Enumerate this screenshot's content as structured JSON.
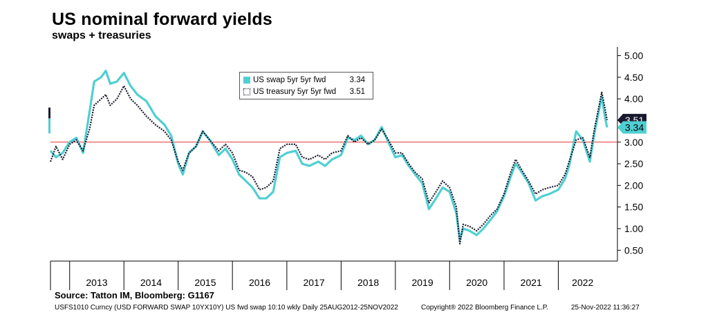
{
  "header": {
    "title": "US nominal forward yields",
    "subtitle": "swaps + treasuries"
  },
  "legend": {
    "items": [
      {
        "label": "US swap 5yr 5yr fwd",
        "value": "3.34",
        "color": "#4fcfd2",
        "style": "solid"
      },
      {
        "label": "US treasury 5yr 5yr fwd",
        "value": "3.51",
        "color": "#1a1a2e",
        "style": "dotted"
      }
    ]
  },
  "footer": {
    "source": "Source: Tatton IM, Bloomberg: G1167",
    "ticker": "USFS1010 Curncy (USD FORWARD SWAP 10YX10Y) US fwd swap 10:10 wkly  Daily 25AUG2012-25NOV2022",
    "copyright": "Copyright® 2022 Bloomberg Finance L.P.",
    "timestamp": "25-Nov-2022 11:36:27"
  },
  "chart_data": {
    "type": "line",
    "title": "US nominal forward yields",
    "subtitle": "swaps + treasuries",
    "xlabel": "",
    "ylabel": "",
    "x_range": [
      "2012-08-25",
      "2022-11-25"
    ],
    "x_tick_labels": [
      "2013",
      "2014",
      "2015",
      "2016",
      "2017",
      "2018",
      "2019",
      "2020",
      "2021",
      "2022"
    ],
    "ylim": [
      0.25,
      5.2
    ],
    "y_ticks": [
      "5.00",
      "4.50",
      "4.00",
      "3.50",
      "3.00",
      "2.50",
      "2.00",
      "1.50",
      "1.00",
      "0.50"
    ],
    "y_axis_side": "right",
    "reference_line": {
      "y": 3.0,
      "color": "#e03030"
    },
    "last_value_tags": [
      {
        "value": "3.51",
        "color": "#1a1a2e"
      },
      {
        "value": "3.34",
        "color": "#4fcfd2"
      }
    ],
    "legend_position": "top-center",
    "grid": false,
    "series": [
      {
        "name": "US swap 5yr 5yr fwd",
        "color": "#4fcfd2",
        "style": "solid",
        "points": [
          [
            "2012-08-25",
            2.8
          ],
          [
            "2012-10-01",
            2.65
          ],
          [
            "2012-11-15",
            2.75
          ],
          [
            "2013-01-01",
            3.0
          ],
          [
            "2013-02-15",
            3.1
          ],
          [
            "2013-04-01",
            2.75
          ],
          [
            "2013-05-15",
            3.7
          ],
          [
            "2013-06-15",
            4.4
          ],
          [
            "2013-08-01",
            4.5
          ],
          [
            "2013-09-01",
            4.65
          ],
          [
            "2013-10-01",
            4.35
          ],
          [
            "2013-11-15",
            4.4
          ],
          [
            "2014-01-01",
            4.6
          ],
          [
            "2014-02-15",
            4.3
          ],
          [
            "2014-04-01",
            4.1
          ],
          [
            "2014-06-01",
            3.95
          ],
          [
            "2014-08-01",
            3.6
          ],
          [
            "2014-10-01",
            3.4
          ],
          [
            "2014-11-15",
            3.15
          ],
          [
            "2015-01-01",
            2.5
          ],
          [
            "2015-02-01",
            2.25
          ],
          [
            "2015-03-15",
            2.75
          ],
          [
            "2015-05-01",
            2.9
          ],
          [
            "2015-06-15",
            3.25
          ],
          [
            "2015-08-01",
            3.05
          ],
          [
            "2015-10-01",
            2.7
          ],
          [
            "2015-11-15",
            2.85
          ],
          [
            "2016-01-01",
            2.6
          ],
          [
            "2016-02-15",
            2.25
          ],
          [
            "2016-04-01",
            2.1
          ],
          [
            "2016-05-15",
            1.95
          ],
          [
            "2016-07-01",
            1.7
          ],
          [
            "2016-08-15",
            1.7
          ],
          [
            "2016-10-01",
            1.85
          ],
          [
            "2016-11-15",
            2.65
          ],
          [
            "2017-01-01",
            2.75
          ],
          [
            "2017-03-01",
            2.8
          ],
          [
            "2017-04-15",
            2.5
          ],
          [
            "2017-06-01",
            2.45
          ],
          [
            "2017-08-01",
            2.55
          ],
          [
            "2017-09-15",
            2.45
          ],
          [
            "2017-11-01",
            2.6
          ],
          [
            "2018-01-01",
            2.7
          ],
          [
            "2018-02-15",
            3.1
          ],
          [
            "2018-04-01",
            3.05
          ],
          [
            "2018-05-15",
            3.15
          ],
          [
            "2018-07-01",
            2.95
          ],
          [
            "2018-08-15",
            3.05
          ],
          [
            "2018-10-01",
            3.35
          ],
          [
            "2018-11-15",
            3.0
          ],
          [
            "2019-01-01",
            2.65
          ],
          [
            "2019-02-15",
            2.7
          ],
          [
            "2019-04-01",
            2.45
          ],
          [
            "2019-05-15",
            2.25
          ],
          [
            "2019-07-01",
            2.05
          ],
          [
            "2019-08-15",
            1.45
          ],
          [
            "2019-10-01",
            1.7
          ],
          [
            "2019-11-15",
            1.95
          ],
          [
            "2020-01-01",
            1.85
          ],
          [
            "2020-02-15",
            1.35
          ],
          [
            "2020-03-10",
            0.75
          ],
          [
            "2020-04-01",
            1.0
          ],
          [
            "2020-05-15",
            0.95
          ],
          [
            "2020-07-01",
            0.85
          ],
          [
            "2020-08-15",
            1.0
          ],
          [
            "2020-10-01",
            1.2
          ],
          [
            "2020-11-15",
            1.4
          ],
          [
            "2021-01-01",
            1.75
          ],
          [
            "2021-02-15",
            2.2
          ],
          [
            "2021-03-20",
            2.5
          ],
          [
            "2021-05-01",
            2.3
          ],
          [
            "2021-06-15",
            2.05
          ],
          [
            "2021-08-01",
            1.65
          ],
          [
            "2021-09-15",
            1.75
          ],
          [
            "2021-11-01",
            1.8
          ],
          [
            "2022-01-01",
            1.9
          ],
          [
            "2022-02-15",
            2.15
          ],
          [
            "2022-03-15",
            2.45
          ],
          [
            "2022-05-01",
            3.25
          ],
          [
            "2022-06-15",
            3.05
          ],
          [
            "2022-08-01",
            2.55
          ],
          [
            "2022-09-01",
            3.2
          ],
          [
            "2022-10-20",
            4.05
          ],
          [
            "2022-11-10",
            3.6
          ],
          [
            "2022-11-25",
            3.34
          ]
        ]
      },
      {
        "name": "US treasury 5yr 5yr fwd",
        "color": "#1a1a2e",
        "style": "dotted",
        "points": [
          [
            "2012-08-25",
            2.55
          ],
          [
            "2012-10-01",
            2.9
          ],
          [
            "2012-11-15",
            2.6
          ],
          [
            "2013-01-01",
            2.95
          ],
          [
            "2013-02-15",
            3.05
          ],
          [
            "2013-04-01",
            2.8
          ],
          [
            "2013-05-15",
            3.3
          ],
          [
            "2013-06-15",
            3.85
          ],
          [
            "2013-08-01",
            4.0
          ],
          [
            "2013-09-01",
            4.1
          ],
          [
            "2013-10-01",
            3.85
          ],
          [
            "2013-11-15",
            4.0
          ],
          [
            "2014-01-01",
            4.3
          ],
          [
            "2014-02-15",
            4.0
          ],
          [
            "2014-04-01",
            3.85
          ],
          [
            "2014-06-01",
            3.6
          ],
          [
            "2014-08-01",
            3.4
          ],
          [
            "2014-10-01",
            3.25
          ],
          [
            "2014-11-15",
            3.05
          ],
          [
            "2015-01-01",
            2.55
          ],
          [
            "2015-02-01",
            2.35
          ],
          [
            "2015-03-15",
            2.75
          ],
          [
            "2015-05-01",
            2.9
          ],
          [
            "2015-06-15",
            3.25
          ],
          [
            "2015-08-01",
            3.05
          ],
          [
            "2015-10-01",
            2.8
          ],
          [
            "2015-11-15",
            2.95
          ],
          [
            "2016-01-01",
            2.75
          ],
          [
            "2016-02-15",
            2.35
          ],
          [
            "2016-04-01",
            2.3
          ],
          [
            "2016-05-15",
            2.2
          ],
          [
            "2016-07-01",
            1.9
          ],
          [
            "2016-08-15",
            1.95
          ],
          [
            "2016-10-01",
            2.1
          ],
          [
            "2016-11-15",
            2.85
          ],
          [
            "2017-01-01",
            2.95
          ],
          [
            "2017-03-01",
            2.95
          ],
          [
            "2017-04-15",
            2.65
          ],
          [
            "2017-06-01",
            2.6
          ],
          [
            "2017-08-01",
            2.7
          ],
          [
            "2017-09-15",
            2.6
          ],
          [
            "2017-11-01",
            2.75
          ],
          [
            "2018-01-01",
            2.8
          ],
          [
            "2018-02-15",
            3.15
          ],
          [
            "2018-04-01",
            3.0
          ],
          [
            "2018-05-15",
            3.1
          ],
          [
            "2018-07-01",
            2.95
          ],
          [
            "2018-08-15",
            3.05
          ],
          [
            "2018-10-01",
            3.3
          ],
          [
            "2018-11-15",
            3.05
          ],
          [
            "2019-01-01",
            2.75
          ],
          [
            "2019-02-15",
            2.75
          ],
          [
            "2019-04-01",
            2.5
          ],
          [
            "2019-05-15",
            2.3
          ],
          [
            "2019-07-01",
            2.15
          ],
          [
            "2019-08-15",
            1.6
          ],
          [
            "2019-10-01",
            1.85
          ],
          [
            "2019-11-15",
            2.1
          ],
          [
            "2020-01-01",
            1.95
          ],
          [
            "2020-02-15",
            1.5
          ],
          [
            "2020-03-10",
            0.65
          ],
          [
            "2020-04-01",
            1.1
          ],
          [
            "2020-05-15",
            1.05
          ],
          [
            "2020-07-01",
            0.95
          ],
          [
            "2020-08-15",
            1.1
          ],
          [
            "2020-10-01",
            1.3
          ],
          [
            "2020-11-15",
            1.45
          ],
          [
            "2021-01-01",
            1.8
          ],
          [
            "2021-02-15",
            2.3
          ],
          [
            "2021-03-20",
            2.6
          ],
          [
            "2021-05-01",
            2.35
          ],
          [
            "2021-06-15",
            2.1
          ],
          [
            "2021-08-01",
            1.8
          ],
          [
            "2021-09-15",
            1.9
          ],
          [
            "2021-11-01",
            1.95
          ],
          [
            "2022-01-01",
            2.0
          ],
          [
            "2022-02-15",
            2.25
          ],
          [
            "2022-03-15",
            2.55
          ],
          [
            "2022-05-01",
            3.05
          ],
          [
            "2022-06-15",
            3.1
          ],
          [
            "2022-08-01",
            2.65
          ],
          [
            "2022-09-01",
            3.3
          ],
          [
            "2022-10-20",
            4.15
          ],
          [
            "2022-11-10",
            3.8
          ],
          [
            "2022-11-25",
            3.51
          ]
        ]
      }
    ]
  }
}
